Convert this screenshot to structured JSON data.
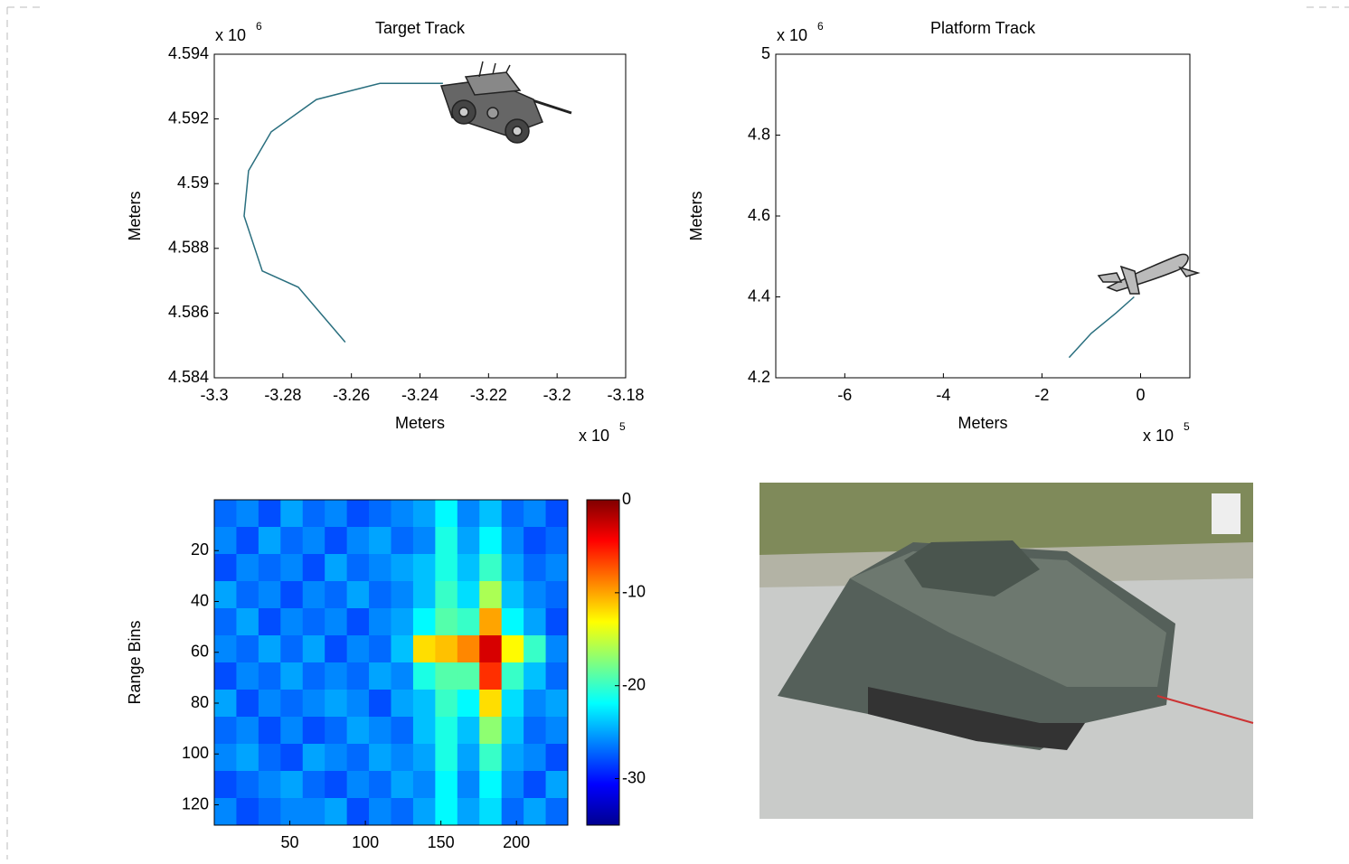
{
  "chart_data": [
    {
      "type": "line",
      "title": "Target Track",
      "x_label": "Meters",
      "y_label": "Meters",
      "x_multiplier": {
        "text": "x 10",
        "power": "5"
      },
      "y_multiplier": {
        "text": "x 10",
        "power": "6"
      },
      "xlim": [
        -3.3,
        -3.18
      ],
      "xticks": [
        -3.3,
        -3.28,
        -3.26,
        -3.24,
        -3.22,
        -3.2,
        -3.18
      ],
      "ylim": [
        4.584,
        4.594
      ],
      "yticks": [
        4.584,
        4.586,
        4.588,
        4.59,
        4.592,
        4.594
      ],
      "series": [
        {
          "color": "#2a6f7f",
          "x": [
            -3.2618,
            -3.2755,
            -3.286,
            -3.2913,
            -3.29,
            -3.2834,
            -3.2702,
            -3.2517,
            -3.2333
          ],
          "values": [
            4.5851,
            4.5868,
            4.5873,
            4.589,
            4.5904,
            4.5916,
            4.5926,
            4.5931,
            4.5931
          ]
        }
      ]
    },
    {
      "type": "line",
      "title": "Platform Track",
      "x_label": "Meters",
      "y_label": "Meters",
      "x_multiplier": {
        "text": "x 10",
        "power": "5"
      },
      "y_multiplier": {
        "text": "x 10",
        "power": "6"
      },
      "xlim": [
        -7.4,
        1
      ],
      "xticks": [
        -6,
        -4,
        -2,
        0
      ],
      "ylim": [
        4.2,
        5
      ],
      "yticks": [
        4.2,
        4.4,
        4.6,
        4.8,
        5
      ],
      "series": [
        {
          "color": "#2a6f7f",
          "x": [
            -1.45,
            -1.0,
            -0.5,
            -0.13
          ],
          "values": [
            4.25,
            4.31,
            4.36,
            4.4
          ]
        }
      ]
    },
    {
      "type": "heatmap",
      "y_label": "Range Bins",
      "colormap": "jet",
      "y_reversed": true,
      "xlim": [
        0,
        234
      ],
      "xticks": [
        50,
        100,
        150,
        200
      ],
      "ylim": [
        0,
        128
      ],
      "yticks": [
        20,
        40,
        60,
        80,
        100,
        120
      ],
      "clim": [
        -35,
        0
      ],
      "cticks": [
        0,
        -10,
        -20,
        -30
      ],
      "matrix": [
        [
          -27,
          -26,
          -28,
          -25,
          -27,
          -26,
          -28,
          -27,
          -26,
          -25,
          -22,
          -26,
          -24,
          -27,
          -26,
          -28
        ],
        [
          -26,
          -28,
          -25,
          -27,
          -26,
          -28,
          -26,
          -25,
          -27,
          -26,
          -21,
          -25,
          -22,
          -26,
          -28,
          -27
        ],
        [
          -28,
          -26,
          -27,
          -26,
          -28,
          -25,
          -27,
          -26,
          -25,
          -24,
          -21,
          -24,
          -20,
          -25,
          -27,
          -26
        ],
        [
          -25,
          -27,
          -26,
          -28,
          -26,
          -27,
          -25,
          -27,
          -26,
          -24,
          -20,
          -23,
          -16,
          -24,
          -26,
          -27
        ],
        [
          -27,
          -25,
          -28,
          -26,
          -27,
          -26,
          -28,
          -26,
          -25,
          -22,
          -19,
          -20,
          -10,
          -22,
          -25,
          -28
        ],
        [
          -26,
          -27,
          -25,
          -27,
          -25,
          -28,
          -26,
          -27,
          -24,
          -12,
          -11,
          -9,
          -3,
          -13,
          -20,
          -26
        ],
        [
          -28,
          -26,
          -27,
          -25,
          -27,
          -26,
          -27,
          -25,
          -26,
          -21,
          -19,
          -19,
          -6,
          -20,
          -24,
          -27
        ],
        [
          -25,
          -28,
          -26,
          -27,
          -26,
          -25,
          -26,
          -28,
          -25,
          -24,
          -20,
          -22,
          -12,
          -23,
          -26,
          -25
        ],
        [
          -27,
          -26,
          -28,
          -26,
          -28,
          -27,
          -25,
          -26,
          -27,
          -24,
          -21,
          -24,
          -17,
          -24,
          -27,
          -26
        ],
        [
          -26,
          -25,
          -27,
          -28,
          -25,
          -26,
          -27,
          -25,
          -26,
          -25,
          -21,
          -25,
          -20,
          -25,
          -26,
          -28
        ],
        [
          -28,
          -27,
          -26,
          -25,
          -27,
          -28,
          -26,
          -27,
          -25,
          -26,
          -22,
          -26,
          -22,
          -26,
          -28,
          -25
        ],
        [
          -26,
          -28,
          -27,
          -26,
          -26,
          -25,
          -28,
          -26,
          -27,
          -25,
          -22,
          -25,
          -23,
          -27,
          -25,
          -27
        ]
      ]
    }
  ]
}
